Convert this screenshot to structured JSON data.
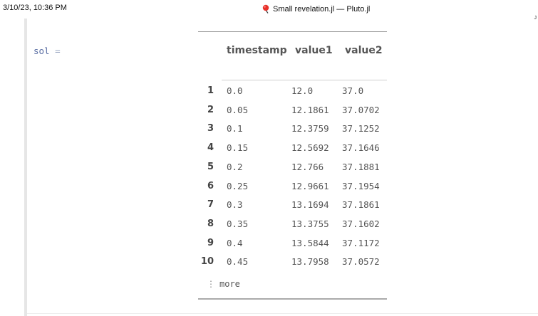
{
  "print_header": {
    "datetime": "3/10/23, 10:36 PM",
    "title": "Small revelation.jl — Pluto.jl",
    "corner_mark": "J"
  },
  "cell": {
    "variable": "sol",
    "equals": "="
  },
  "table": {
    "columns": [
      "timestamp",
      "value1",
      "value2"
    ],
    "rows": [
      {
        "index": "1",
        "timestamp": "0.0",
        "value1": "12.0",
        "value2": "37.0"
      },
      {
        "index": "2",
        "timestamp": "0.05",
        "value1": "12.1861",
        "value2": "37.0702"
      },
      {
        "index": "3",
        "timestamp": "0.1",
        "value1": "12.3759",
        "value2": "37.1252"
      },
      {
        "index": "4",
        "timestamp": "0.15",
        "value1": "12.5692",
        "value2": "37.1646"
      },
      {
        "index": "5",
        "timestamp": "0.2",
        "value1": "12.766",
        "value2": "37.1881"
      },
      {
        "index": "6",
        "timestamp": "0.25",
        "value1": "12.9661",
        "value2": "37.1954"
      },
      {
        "index": "7",
        "timestamp": "0.3",
        "value1": "13.1694",
        "value2": "37.1861"
      },
      {
        "index": "8",
        "timestamp": "0.35",
        "value1": "13.3755",
        "value2": "37.1602"
      },
      {
        "index": "9",
        "timestamp": "0.4",
        "value1": "13.5844",
        "value2": "37.1172"
      },
      {
        "index": "10",
        "timestamp": "0.45",
        "value1": "13.7958",
        "value2": "37.0572"
      }
    ],
    "more_label": "more",
    "more_icon": "vertical-ellipsis-icon"
  },
  "colors": {
    "pluto_icon": "#e8312a",
    "variable": "#5a6ea3"
  }
}
